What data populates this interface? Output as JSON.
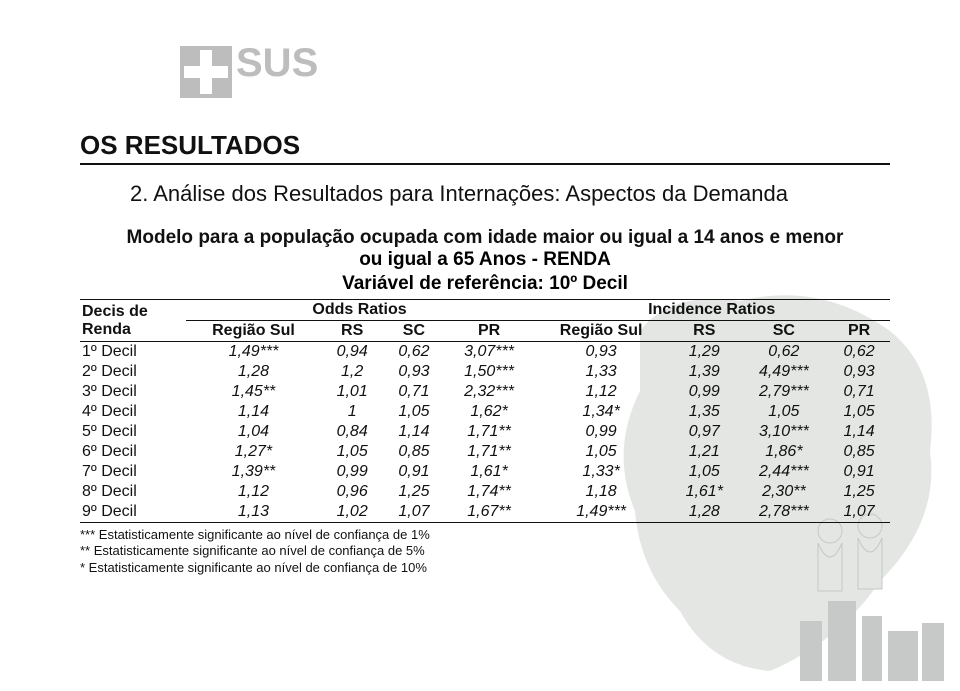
{
  "logo_text": "SUS",
  "section_title": "OS RESULTADOS",
  "subtitle": "2. Análise dos Resultados para Internações: Aspectos da Demanda",
  "model_title_line1": "Modelo para a população ocupada com idade maior ou igual a 14 anos e menor",
  "model_title_line2": "ou igual a 65 Anos - RENDA",
  "ref_var": "Variável de referência: 10º Decil",
  "table": {
    "group_header_left": "Decis de\nRenda",
    "group_odds": "Odds Ratios",
    "group_incidence": "Incidence Ratios",
    "columns": [
      "Região Sul",
      "RS",
      "SC",
      "PR",
      "Região Sul",
      "RS",
      "SC",
      "PR"
    ],
    "rows": [
      {
        "label": "1º Decil",
        "cells": [
          "1,49***",
          "0,94",
          "0,62",
          "3,07***",
          "0,93",
          "1,29",
          "0,62",
          "0,62"
        ]
      },
      {
        "label": "2º Decil",
        "cells": [
          "1,28",
          "1,2",
          "0,93",
          "1,50***",
          "1,33",
          "1,39",
          "4,49***",
          "0,93"
        ]
      },
      {
        "label": "3º Decil",
        "cells": [
          "1,45**",
          "1,01",
          "0,71",
          "2,32***",
          "1,12",
          "0,99",
          "2,79***",
          "0,71"
        ]
      },
      {
        "label": "4º Decil",
        "cells": [
          "1,14",
          "1",
          "1,05",
          "1,62*",
          "1,34*",
          "1,35",
          "1,05",
          "1,05"
        ]
      },
      {
        "label": "5º Decil",
        "cells": [
          "1,04",
          "0,84",
          "1,14",
          "1,71**",
          "0,99",
          "0,97",
          "3,10***",
          "1,14"
        ]
      },
      {
        "label": "6º Decil",
        "cells": [
          "1,27*",
          "1,05",
          "0,85",
          "1,71**",
          "1,05",
          "1,21",
          "1,86*",
          "0,85"
        ]
      },
      {
        "label": "7º Decil",
        "cells": [
          "1,39**",
          "0,99",
          "0,91",
          "1,61*",
          "1,33*",
          "1,05",
          "2,44***",
          "0,91"
        ]
      },
      {
        "label": "8º Decil",
        "cells": [
          "1,12",
          "0,96",
          "1,25",
          "1,74**",
          "1,18",
          "1,61*",
          "2,30**",
          "1,25"
        ]
      },
      {
        "label": "9º Decil",
        "cells": [
          "1,13",
          "1,02",
          "1,07",
          "1,67**",
          "1,49***",
          "1,28",
          "2,78***",
          "1,07"
        ]
      }
    ]
  },
  "footnotes": [
    "*** Estatisticamente significante ao nível de confiança de 1%",
    "** Estatisticamente significante ao nível de confiança de 5%",
    "* Estatisticamente significante ao nível de confiança de 10%"
  ],
  "colors": {
    "logo_gray": "#bdbdbd",
    "map_fill": "#c9cfc7",
    "text": "#111111",
    "city_gray": "#8f9490"
  }
}
